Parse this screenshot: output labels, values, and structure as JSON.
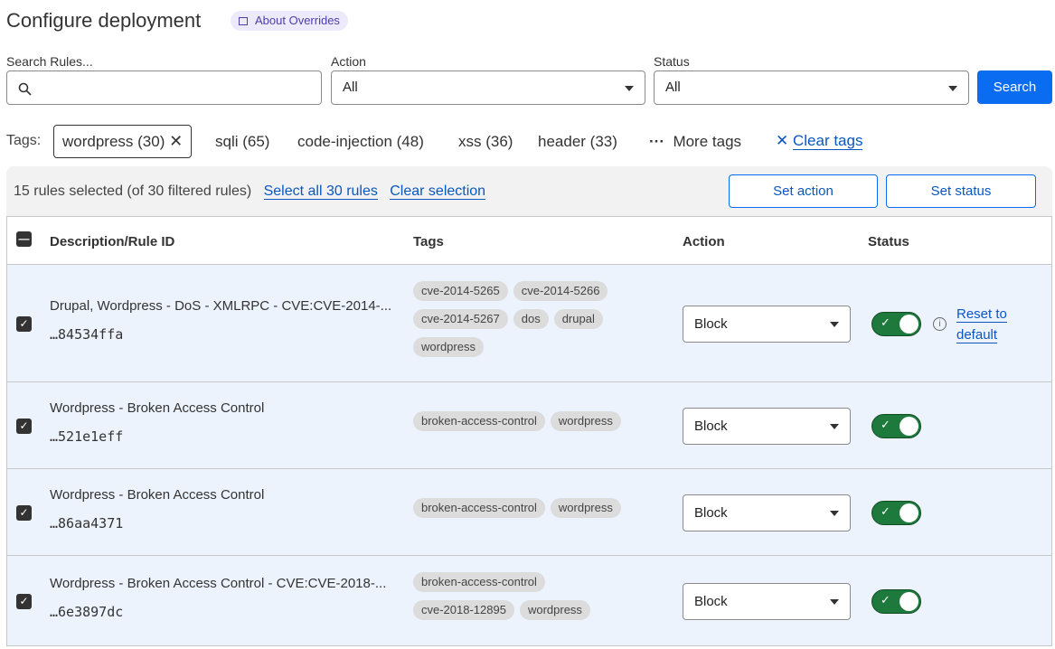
{
  "header": {
    "title": "Configure deployment",
    "about": "About Overrides"
  },
  "filters": {
    "search_label": "Search Rules...",
    "search_value": "",
    "action_label": "Action",
    "action_value": "All",
    "status_label": "Status",
    "status_value": "All",
    "search_button": "Search"
  },
  "tags": {
    "label": "Tags:",
    "active": "wordpress (30)",
    "items": [
      "sqli (65)",
      "code-injection (48)",
      "xss (36)",
      "header (33)"
    ],
    "more": "More tags",
    "clear": "Clear tags"
  },
  "selection": {
    "summary": "15 rules selected (of 30 filtered rules)",
    "select_all": "Select all 30 rules",
    "clear": "Clear selection",
    "set_action": "Set action",
    "set_status": "Set status"
  },
  "table": {
    "columns": [
      "Description/Rule ID",
      "Tags",
      "Action",
      "Status"
    ],
    "rows": [
      {
        "description": "Drupal, Wordpress - DoS - XMLRPC - CVE:CVE-2014-...",
        "id": "…84534ffa",
        "tags": [
          "cve-2014-5265",
          "cve-2014-5266",
          "cve-2014-5267",
          "dos",
          "drupal",
          "wordpress"
        ],
        "action": "Block",
        "enabled": true,
        "checked": true,
        "reset": "Reset to default"
      },
      {
        "description": "Wordpress - Broken Access Control",
        "id": "…521e1eff",
        "tags": [
          "broken-access-control",
          "wordpress"
        ],
        "action": "Block",
        "enabled": true,
        "checked": true
      },
      {
        "description": "Wordpress - Broken Access Control",
        "id": "…86aa4371",
        "tags": [
          "broken-access-control",
          "wordpress"
        ],
        "action": "Block",
        "enabled": true,
        "checked": true
      },
      {
        "description": "Wordpress - Broken Access Control - CVE:CVE-2018-...",
        "id": "…6e3897dc",
        "tags": [
          "broken-access-control",
          "cve-2018-12895",
          "wordpress"
        ],
        "action": "Block",
        "enabled": true,
        "checked": true
      }
    ]
  },
  "colors": {
    "primary": "#0a6cf1",
    "link": "#0a57c2",
    "toggle_on": "#1e7a3c",
    "row_selected": "#edf3fd"
  }
}
